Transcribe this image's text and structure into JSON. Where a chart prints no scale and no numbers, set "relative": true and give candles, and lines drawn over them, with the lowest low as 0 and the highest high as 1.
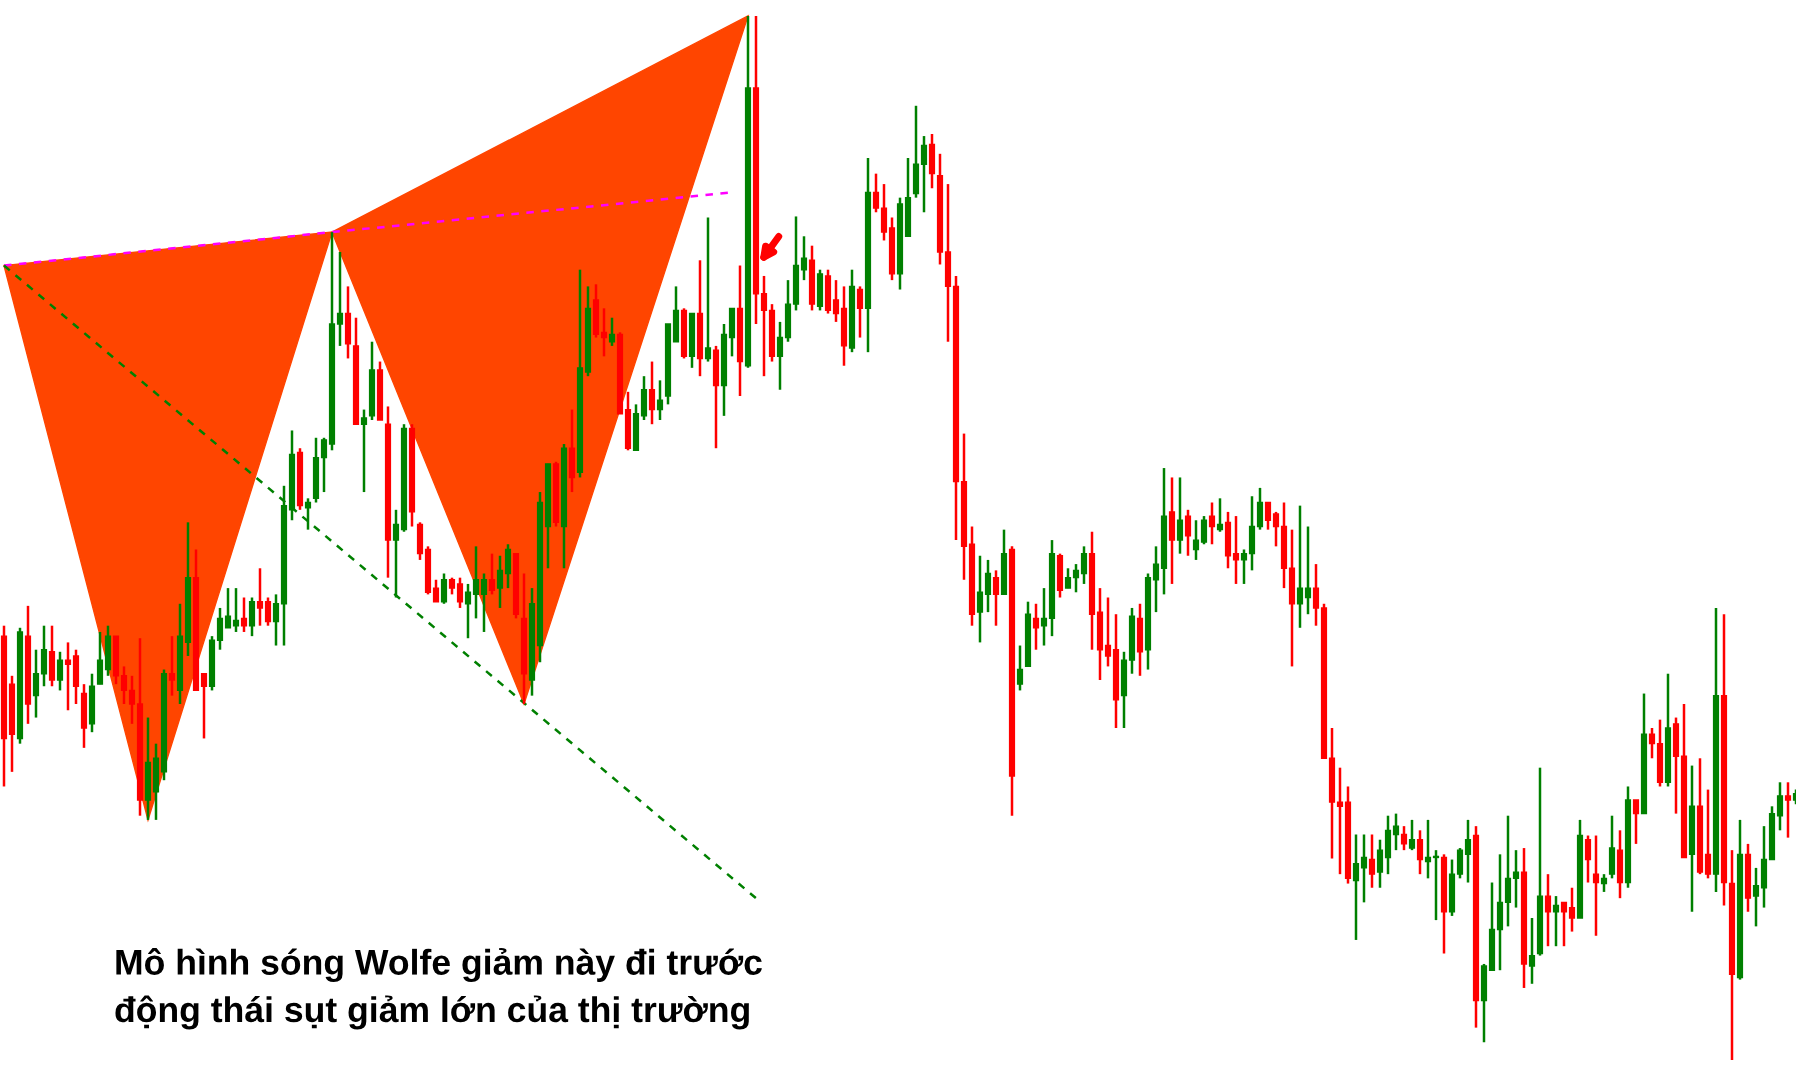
{
  "chart_data": {
    "type": "candlestick",
    "relative": true,
    "categories": [
      null,
      null,
      null,
      null,
      null,
      null,
      null,
      null,
      null,
      null,
      null,
      null,
      null,
      null,
      null,
      null,
      null,
      null,
      null,
      null,
      null,
      null,
      null,
      null,
      null,
      null,
      null,
      null,
      null,
      null,
      null,
      null,
      null,
      null,
      null,
      null,
      null,
      null,
      null,
      null,
      null,
      null,
      null,
      null,
      null,
      null,
      null,
      null,
      null,
      null,
      null,
      null,
      null,
      null,
      null,
      null,
      null,
      null,
      null,
      null,
      null,
      null,
      null,
      null,
      null,
      null,
      null,
      null,
      null,
      null,
      null,
      null,
      null,
      null,
      null,
      null,
      null,
      null,
      null,
      null,
      null,
      null,
      null,
      null,
      null,
      null,
      null,
      null,
      null,
      null,
      null,
      null,
      null,
      null,
      null,
      null,
      null,
      null,
      null,
      null,
      null,
      null,
      null,
      null,
      null,
      null,
      null,
      null,
      null,
      null,
      null,
      null,
      null,
      null,
      null,
      null,
      null,
      null,
      null,
      null,
      null,
      null,
      null,
      null,
      null,
      null,
      null,
      null,
      null,
      null,
      null,
      null,
      null,
      null,
      null,
      null,
      null,
      null,
      null,
      null,
      null,
      null,
      null,
      null,
      null,
      null,
      null,
      null,
      null,
      null,
      null,
      null,
      null,
      null,
      null,
      null,
      null,
      null,
      null,
      null,
      null,
      null,
      null,
      null,
      null,
      null,
      null,
      null,
      null,
      null,
      null,
      null,
      null,
      null,
      null,
      null,
      null,
      null,
      null,
      null,
      null,
      null,
      null,
      null,
      null,
      null,
      null,
      null,
      null,
      null,
      null,
      null,
      null,
      null,
      null,
      null,
      null,
      null,
      null,
      null,
      null,
      null,
      null,
      null,
      null,
      null,
      null,
      null,
      null,
      null,
      null,
      null,
      null,
      null,
      null,
      null,
      null,
      null,
      null,
      null,
      null,
      null,
      null,
      null,
      null
    ],
    "ohlc": [
      [
        0.406,
        0.416,
        0.262,
        0.308
      ],
      [
        0.36,
        0.368,
        0.276,
        0.312
      ],
      [
        0.308,
        0.414,
        0.303,
        0.41
      ],
      [
        0.406,
        0.435,
        0.322,
        0.341
      ],
      [
        0.349,
        0.393,
        0.328,
        0.37
      ],
      [
        0.37,
        0.416,
        0.358,
        0.393
      ],
      [
        0.391,
        0.416,
        0.358,
        0.364
      ],
      [
        0.364,
        0.391,
        0.354,
        0.383
      ],
      [
        0.383,
        0.4,
        0.335,
        0.379
      ],
      [
        0.387,
        0.393,
        0.341,
        0.358
      ],
      [
        0.351,
        0.36,
        0.299,
        0.318
      ],
      [
        0.322,
        0.37,
        0.314,
        0.358
      ],
      [
        0.36,
        0.41,
        0.36,
        0.383
      ],
      [
        0.374,
        0.416,
        0.368,
        0.406
      ],
      [
        0.406,
        0.406,
        0.36,
        0.368
      ],
      [
        0.368,
        0.377,
        0.341,
        0.354
      ],
      [
        0.354,
        0.368,
        0.322,
        0.341
      ],
      [
        0.341,
        0.404,
        0.234,
        0.249
      ],
      [
        0.249,
        0.328,
        0.23,
        0.285
      ],
      [
        0.257,
        0.303,
        0.23,
        0.289
      ],
      [
        0.276,
        0.374,
        0.268,
        0.37
      ],
      [
        0.37,
        0.406,
        0.349,
        0.364
      ],
      [
        0.354,
        0.437,
        0.341,
        0.406
      ],
      [
        0.4,
        0.515,
        0.387,
        0.462
      ],
      [
        0.462,
        0.489,
        0.354,
        0.354
      ],
      [
        0.37,
        0.37,
        0.308,
        0.358
      ],
      [
        0.358,
        0.406,
        0.354,
        0.402
      ],
      [
        0.402,
        0.433,
        0.393,
        0.423
      ],
      [
        0.414,
        0.452,
        0.414,
        0.425
      ],
      [
        0.416,
        0.452,
        0.41,
        0.421
      ],
      [
        0.423,
        0.443,
        0.41,
        0.416
      ],
      [
        0.416,
        0.443,
        0.406,
        0.439
      ],
      [
        0.439,
        0.471,
        0.416,
        0.433
      ],
      [
        0.439,
        0.443,
        0.416,
        0.42
      ],
      [
        0.42,
        0.446,
        0.397,
        0.437
      ],
      [
        0.437,
        0.55,
        0.397,
        0.531
      ],
      [
        0.527,
        0.603,
        0.517,
        0.58
      ],
      [
        0.582,
        0.586,
        0.527,
        0.531
      ],
      [
        0.529,
        0.538,
        0.508,
        0.534
      ],
      [
        0.538,
        0.596,
        0.534,
        0.577
      ],
      [
        0.577,
        0.596,
        0.544,
        0.594
      ],
      [
        0.59,
        0.793,
        0.584,
        0.705
      ],
      [
        0.705,
        0.774,
        0.684,
        0.715
      ],
      [
        0.715,
        0.741,
        0.672,
        0.686
      ],
      [
        0.684,
        0.711,
        0.609,
        0.609
      ],
      [
        0.609,
        0.623,
        0.544,
        0.615
      ],
      [
        0.617,
        0.688,
        0.613,
        0.661
      ],
      [
        0.661,
        0.669,
        0.613,
        0.613
      ],
      [
        0.609,
        0.626,
        0.462,
        0.498
      ],
      [
        0.498,
        0.527,
        0.443,
        0.513
      ],
      [
        0.508,
        0.609,
        0.506,
        0.605
      ],
      [
        0.605,
        0.609,
        0.511,
        0.525
      ],
      [
        0.513,
        0.515,
        0.479,
        0.485
      ],
      [
        0.489,
        0.492,
        0.446,
        0.448
      ],
      [
        0.452,
        0.46,
        0.439,
        0.439
      ],
      [
        0.439,
        0.466,
        0.437,
        0.46
      ],
      [
        0.46,
        0.462,
        0.446,
        0.452
      ],
      [
        0.456,
        0.462,
        0.433,
        0.439
      ],
      [
        0.437,
        0.456,
        0.404,
        0.448
      ],
      [
        0.446,
        0.492,
        0.423,
        0.46
      ],
      [
        0.446,
        0.466,
        0.41,
        0.46
      ],
      [
        0.46,
        0.485,
        0.446,
        0.45
      ],
      [
        0.452,
        0.483,
        0.433,
        0.469
      ],
      [
        0.466,
        0.494,
        0.452,
        0.489
      ],
      [
        0.485,
        0.485,
        0.423,
        0.427
      ],
      [
        0.423,
        0.466,
        0.341,
        0.37
      ],
      [
        0.364,
        0.452,
        0.349,
        0.437
      ],
      [
        0.397,
        0.544,
        0.381,
        0.534
      ],
      [
        0.511,
        0.571,
        0.471,
        0.571
      ],
      [
        0.571,
        0.573,
        0.511,
        0.515
      ],
      [
        0.511,
        0.59,
        0.471,
        0.586
      ],
      [
        0.586,
        0.623,
        0.544,
        0.558
      ],
      [
        0.563,
        0.757,
        0.558,
        0.663
      ],
      [
        0.659,
        0.741,
        0.655,
        0.72
      ],
      [
        0.728,
        0.743,
        0.692,
        0.695
      ],
      [
        0.697,
        0.72,
        0.674,
        0.692
      ],
      [
        0.688,
        0.711,
        0.684,
        0.695
      ],
      [
        0.695,
        0.697,
        0.619,
        0.619
      ],
      [
        0.623,
        0.64,
        0.584,
        0.586
      ],
      [
        0.584,
        0.628,
        0.584,
        0.619
      ],
      [
        0.617,
        0.655,
        0.613,
        0.642
      ],
      [
        0.642,
        0.669,
        0.609,
        0.623
      ],
      [
        0.623,
        0.651,
        0.613,
        0.632
      ],
      [
        0.636,
        0.705,
        0.628,
        0.705
      ],
      [
        0.688,
        0.741,
        0.688,
        0.718
      ],
      [
        0.718,
        0.72,
        0.672,
        0.674
      ],
      [
        0.674,
        0.715,
        0.663,
        0.715
      ],
      [
        0.715,
        0.766,
        0.655,
        0.672
      ],
      [
        0.672,
        0.807,
        0.669,
        0.682
      ],
      [
        0.68,
        0.684,
        0.586,
        0.646
      ],
      [
        0.646,
        0.705,
        0.617,
        0.695
      ],
      [
        0.692,
        0.72,
        0.674,
        0.72
      ],
      [
        0.72,
        0.761,
        0.636,
        0.669
      ],
      [
        0.665,
        1.0,
        0.663,
        0.931
      ],
      [
        0.931,
        1.0,
        0.705,
        0.734
      ],
      [
        0.734,
        0.751,
        0.655,
        0.718
      ],
      [
        0.718,
        0.724,
        0.669,
        0.674
      ],
      [
        0.674,
        0.707,
        0.642,
        0.692
      ],
      [
        0.692,
        0.747,
        0.688,
        0.724
      ],
      [
        0.724,
        0.808,
        0.718,
        0.761
      ],
      [
        0.757,
        0.789,
        0.747,
        0.768
      ],
      [
        0.766,
        0.78,
        0.718,
        0.724
      ],
      [
        0.722,
        0.757,
        0.718,
        0.753
      ],
      [
        0.751,
        0.757,
        0.715,
        0.718
      ],
      [
        0.728,
        0.747,
        0.707,
        0.715
      ],
      [
        0.72,
        0.741,
        0.665,
        0.684
      ],
      [
        0.682,
        0.757,
        0.678,
        0.741
      ],
      [
        0.738,
        0.741,
        0.692,
        0.72
      ],
      [
        0.72,
        0.864,
        0.678,
        0.831
      ],
      [
        0.831,
        0.849,
        0.812,
        0.816
      ],
      [
        0.816,
        0.839,
        0.785,
        0.793
      ],
      [
        0.797,
        0.807,
        0.747,
        0.753
      ],
      [
        0.753,
        0.826,
        0.738,
        0.82
      ],
      [
        0.789,
        0.864,
        0.789,
        0.826
      ],
      [
        0.83,
        0.914,
        0.826,
        0.858
      ],
      [
        0.858,
        0.885,
        0.812,
        0.876
      ],
      [
        0.877,
        0.887,
        0.835,
        0.849
      ],
      [
        0.847,
        0.868,
        0.762,
        0.774
      ],
      [
        0.774,
        0.839,
        0.688,
        0.741
      ],
      [
        0.741,
        0.751,
        0.498,
        0.554
      ],
      [
        0.554,
        0.6,
        0.46,
        0.492
      ],
      [
        0.494,
        0.511,
        0.416,
        0.427
      ],
      [
        0.429,
        0.483,
        0.4,
        0.448
      ],
      [
        0.446,
        0.479,
        0.429,
        0.466
      ],
      [
        0.462,
        0.469,
        0.416,
        0.446
      ],
      [
        0.446,
        0.508,
        0.446,
        0.485
      ],
      [
        0.489,
        0.492,
        0.234,
        0.272
      ],
      [
        0.36,
        0.397,
        0.354,
        0.374
      ],
      [
        0.377,
        0.439,
        0.377,
        0.427
      ],
      [
        0.423,
        0.437,
        0.393,
        0.414
      ],
      [
        0.416,
        0.452,
        0.397,
        0.423
      ],
      [
        0.423,
        0.498,
        0.406,
        0.485
      ],
      [
        0.483,
        0.485,
        0.443,
        0.45
      ],
      [
        0.452,
        0.471,
        0.452,
        0.462
      ],
      [
        0.462,
        0.475,
        0.448,
        0.469
      ],
      [
        0.466,
        0.492,
        0.456,
        0.485
      ],
      [
        0.485,
        0.506,
        0.393,
        0.427
      ],
      [
        0.429,
        0.452,
        0.364,
        0.393
      ],
      [
        0.397,
        0.443,
        0.377,
        0.387
      ],
      [
        0.393,
        0.427,
        0.318,
        0.345
      ],
      [
        0.349,
        0.391,
        0.318,
        0.383
      ],
      [
        0.383,
        0.433,
        0.37,
        0.425
      ],
      [
        0.423,
        0.437,
        0.368,
        0.391
      ],
      [
        0.393,
        0.466,
        0.374,
        0.462
      ],
      [
        0.46,
        0.492,
        0.429,
        0.475
      ],
      [
        0.471,
        0.567,
        0.446,
        0.521
      ],
      [
        0.525,
        0.558,
        0.456,
        0.498
      ],
      [
        0.498,
        0.558,
        0.485,
        0.517
      ],
      [
        0.521,
        0.527,
        0.483,
        0.502
      ],
      [
        0.489,
        0.517,
        0.479,
        0.498
      ],
      [
        0.496,
        0.521,
        0.494,
        0.517
      ],
      [
        0.521,
        0.534,
        0.494,
        0.511
      ],
      [
        0.508,
        0.538,
        0.506,
        0.513
      ],
      [
        0.515,
        0.525,
        0.471,
        0.483
      ],
      [
        0.485,
        0.521,
        0.456,
        0.479
      ],
      [
        0.479,
        0.489,
        0.456,
        0.485
      ],
      [
        0.485,
        0.54,
        0.469,
        0.511
      ],
      [
        0.511,
        0.548,
        0.508,
        0.534
      ],
      [
        0.534,
        0.534,
        0.508,
        0.517
      ],
      [
        0.523,
        0.525,
        0.492,
        0.511
      ],
      [
        0.511,
        0.534,
        0.452,
        0.471
      ],
      [
        0.471,
        0.508,
        0.377,
        0.437
      ],
      [
        0.437,
        0.531,
        0.414,
        0.452
      ],
      [
        0.443,
        0.511,
        0.427,
        0.452
      ],
      [
        0.452,
        0.475,
        0.416,
        0.433
      ],
      [
        0.433,
        0.437,
        0.289,
        0.289
      ],
      [
        0.289,
        0.318,
        0.193,
        0.247
      ],
      [
        0.247,
        0.28,
        0.178,
        0.243
      ],
      [
        0.247,
        0.262,
        0.169,
        0.174
      ],
      [
        0.172,
        0.216,
        0.115,
        0.188
      ],
      [
        0.184,
        0.216,
        0.151,
        0.194
      ],
      [
        0.192,
        0.216,
        0.165,
        0.178
      ],
      [
        0.18,
        0.211,
        0.165,
        0.201
      ],
      [
        0.194,
        0.234,
        0.178,
        0.22
      ],
      [
        0.216,
        0.236,
        0.201,
        0.224
      ],
      [
        0.216,
        0.224,
        0.201,
        0.207
      ],
      [
        0.203,
        0.23,
        0.201,
        0.211
      ],
      [
        0.211,
        0.22,
        0.178,
        0.192
      ],
      [
        0.19,
        0.23,
        0.174,
        0.194
      ],
      [
        0.194,
        0.201,
        0.134,
        0.195
      ],
      [
        0.194,
        0.197,
        0.102,
        0.142
      ],
      [
        0.142,
        0.192,
        0.138,
        0.178
      ],
      [
        0.178,
        0.203,
        0.174,
        0.201
      ],
      [
        0.197,
        0.23,
        0.17,
        0.211
      ],
      [
        0.215,
        0.224,
        0.031,
        0.057
      ],
      [
        0.057,
        0.092,
        0.017,
        0.09
      ],
      [
        0.086,
        0.17,
        0.086,
        0.125
      ],
      [
        0.125,
        0.197,
        0.086,
        0.151
      ],
      [
        0.151,
        0.234,
        0.128,
        0.174
      ],
      [
        0.174,
        0.201,
        0.146,
        0.18
      ],
      [
        0.18,
        0.203,
        0.069,
        0.092
      ],
      [
        0.09,
        0.136,
        0.073,
        0.1
      ],
      [
        0.102,
        0.28,
        0.1,
        0.157
      ],
      [
        0.157,
        0.178,
        0.109,
        0.142
      ],
      [
        0.142,
        0.157,
        0.109,
        0.148
      ],
      [
        0.151,
        0.151,
        0.109,
        0.142
      ],
      [
        0.146,
        0.165,
        0.123,
        0.136
      ],
      [
        0.136,
        0.23,
        0.136,
        0.215
      ],
      [
        0.211,
        0.215,
        0.17,
        0.192
      ],
      [
        0.178,
        0.215,
        0.119,
        0.17
      ],
      [
        0.169,
        0.178,
        0.161,
        0.174
      ],
      [
        0.178,
        0.234,
        0.174,
        0.203
      ],
      [
        0.201,
        0.22,
        0.155,
        0.17
      ],
      [
        0.17,
        0.262,
        0.165,
        0.249
      ],
      [
        0.249,
        0.249,
        0.207,
        0.236
      ],
      [
        0.236,
        0.351,
        0.236,
        0.312
      ],
      [
        0.312,
        0.318,
        0.289,
        0.303
      ],
      [
        0.303,
        0.326,
        0.262,
        0.266
      ],
      [
        0.266,
        0.37,
        0.262,
        0.318
      ],
      [
        0.322,
        0.328,
        0.236,
        0.291
      ],
      [
        0.291,
        0.341,
        0.194,
        0.194
      ],
      [
        0.197,
        0.282,
        0.142,
        0.243
      ],
      [
        0.243,
        0.289,
        0.178,
        0.18
      ],
      [
        0.197,
        0.259,
        0.174,
        0.178
      ],
      [
        0.178,
        0.433,
        0.161,
        0.349
      ],
      [
        0.349,
        0.427,
        0.148,
        0.17
      ],
      [
        0.169,
        0.201,
        0.0,
        0.082
      ],
      [
        0.079,
        0.23,
        0.077,
        0.197
      ],
      [
        0.197,
        0.207,
        0.142,
        0.155
      ],
      [
        0.157,
        0.184,
        0.128,
        0.167
      ],
      [
        0.165,
        0.224,
        0.146,
        0.192
      ],
      [
        0.192,
        0.243,
        0.192,
        0.236
      ],
      [
        0.234,
        0.266,
        0.22,
        0.253
      ],
      [
        0.253,
        0.266,
        0.213,
        0.249
      ],
      [
        0.249,
        0.259,
        0.245,
        0.255
      ]
    ],
    "colors": [
      "#ff0000",
      "#ff0000",
      "#008000",
      "#ff0000",
      "#008000",
      "#008000",
      "#ff0000",
      "#008000",
      "#ff0000",
      "#ff0000",
      "#ff0000",
      "#008000",
      "#008000",
      "#008000",
      "#ff0000",
      "#ff0000",
      "#ff0000",
      "#ff0000",
      "#008000",
      "#008000",
      "#008000",
      "#ff0000",
      "#008000",
      "#008000",
      "#ff0000",
      "#ff0000",
      "#008000",
      "#008000",
      "#008000",
      "#008000",
      "#ff0000",
      "#008000",
      "#ff0000",
      "#ff0000",
      "#008000",
      "#008000",
      "#008000",
      "#ff0000",
      "#008000",
      "#008000",
      "#008000",
      "#008000",
      "#008000",
      "#ff0000",
      "#ff0000",
      "#008000",
      "#008000",
      "#ff0000",
      "#ff0000",
      "#008000",
      "#008000",
      "#ff0000",
      "#ff0000",
      "#ff0000",
      "#ff0000",
      "#008000",
      "#ff0000",
      "#ff0000",
      "#008000",
      "#008000",
      "#008000",
      "#ff0000",
      "#008000",
      "#008000",
      "#ff0000",
      "#ff0000",
      "#008000",
      "#008000",
      "#008000",
      "#ff0000",
      "#008000",
      "#ff0000",
      "#008000",
      "#008000",
      "#ff0000",
      "#ff0000",
      "#008000",
      "#ff0000",
      "#ff0000",
      "#008000",
      "#008000",
      "#ff0000",
      "#008000",
      "#008000",
      "#008000",
      "#ff0000",
      "#008000",
      "#ff0000",
      "#008000",
      "#ff0000",
      "#008000",
      "#008000",
      "#ff0000",
      "#008000",
      "#ff0000",
      "#ff0000",
      "#ff0000",
      "#008000",
      "#008000",
      "#008000",
      "#008000",
      "#ff0000",
      "#008000",
      "#ff0000",
      "#ff0000",
      "#ff0000",
      "#008000",
      "#ff0000",
      "#008000",
      "#ff0000",
      "#ff0000",
      "#ff0000",
      "#008000",
      "#008000",
      "#008000",
      "#008000",
      "#ff0000",
      "#ff0000",
      "#ff0000",
      "#ff0000",
      "#ff0000",
      "#ff0000",
      "#008000",
      "#008000",
      "#ff0000",
      "#008000",
      "#ff0000",
      "#008000",
      "#008000",
      "#ff0000",
      "#008000",
      "#008000",
      "#ff0000",
      "#008000",
      "#008000",
      "#008000",
      "#ff0000",
      "#ff0000",
      "#ff0000",
      "#ff0000",
      "#008000",
      "#008000",
      "#ff0000",
      "#008000",
      "#008000",
      "#008000",
      "#ff0000",
      "#008000",
      "#ff0000",
      "#008000",
      "#008000",
      "#ff0000",
      "#008000",
      "#ff0000",
      "#ff0000",
      "#008000",
      "#008000",
      "#008000",
      "#ff0000",
      "#ff0000",
      "#ff0000",
      "#ff0000",
      "#008000",
      "#008000",
      "#ff0000",
      "#ff0000",
      "#ff0000",
      "#ff0000",
      "#ff0000",
      "#008000",
      "#008000",
      "#ff0000",
      "#008000",
      "#008000",
      "#008000",
      "#ff0000",
      "#008000",
      "#ff0000",
      "#008000",
      "#008000",
      "#ff0000",
      "#008000",
      "#008000",
      "#008000",
      "#ff0000",
      "#008000",
      "#008000",
      "#008000",
      "#008000",
      "#008000",
      "#ff0000",
      "#008000",
      "#008000",
      "#ff0000",
      "#008000",
      "#ff0000",
      "#ff0000",
      "#008000",
      "#ff0000",
      "#ff0000",
      "#008000",
      "#008000",
      "#ff0000",
      "#008000",
      "#ff0000",
      "#008000",
      "#ff0000",
      "#ff0000",
      "#008000",
      "#ff0000",
      "#ff0000",
      "#008000",
      "#ff0000",
      "#ff0000",
      "#008000",
      "#ff0000",
      "#ff0000",
      "#008000",
      "#ff0000",
      "#008000",
      "#008000",
      "#008000",
      "#008000",
      "#ff0000",
      "#008000"
    ],
    "series": [
      {
        "type": "line",
        "color": "#ff00ff",
        "line_style": "dashed",
        "values": [
          0.761,
          null,
          null,
          null,
          null,
          null,
          null,
          null,
          null,
          null,
          null,
          null,
          null,
          null,
          null,
          null,
          null,
          null,
          null,
          null,
          null,
          null,
          null,
          null,
          null,
          null,
          null,
          null,
          null,
          null,
          null,
          null,
          null,
          null,
          null,
          null,
          null,
          null,
          null,
          null,
          null,
          0.793,
          null,
          null,
          null,
          null,
          null,
          null,
          null,
          null,
          null,
          null,
          null,
          null,
          null,
          null,
          null,
          null,
          null,
          null,
          null,
          null,
          null,
          null,
          null,
          null,
          null,
          null,
          null,
          null,
          null,
          null,
          null,
          null,
          null,
          null,
          null,
          null,
          null,
          null,
          null,
          null,
          null,
          null,
          null,
          null,
          null,
          null,
          null,
          null,
          null,
          0.831,
          null,
          null,
          null,
          null,
          null,
          null,
          null,
          null,
          null,
          null,
          null,
          null,
          null,
          null,
          null,
          null,
          null,
          null,
          null,
          null,
          null,
          null,
          null,
          null,
          null,
          null,
          null,
          null,
          null,
          null,
          null,
          null,
          null,
          null,
          null,
          null,
          null,
          null,
          null,
          null,
          null,
          null,
          null,
          null,
          null,
          null,
          null,
          null,
          null,
          null,
          null,
          null,
          null,
          null,
          null,
          null,
          null,
          null,
          null,
          null,
          null,
          null,
          null,
          null,
          null,
          null,
          null,
          null,
          null,
          null,
          null,
          null,
          null,
          null,
          null,
          null,
          null,
          null,
          null,
          null,
          null,
          null,
          null,
          null,
          null,
          null,
          null,
          null,
          null,
          null,
          null,
          null,
          null,
          null,
          null,
          null,
          null,
          null,
          null,
          null,
          null,
          null,
          null,
          null,
          null,
          null,
          null,
          null,
          null,
          null,
          null,
          null,
          null,
          null,
          null,
          null,
          null,
          null,
          null,
          null,
          null,
          null,
          null,
          null,
          null,
          null,
          null,
          null,
          null,
          null,
          null,
          null,
          null
        ]
      },
      {
        "type": "line",
        "color": "#008000",
        "line_style": "dashed",
        "values": [
          0.761,
          null,
          null,
          null,
          null,
          null,
          null,
          null,
          null,
          null,
          null,
          null,
          null,
          null,
          null,
          null,
          null,
          null,
          null,
          null,
          null,
          null,
          null,
          null,
          null,
          null,
          null,
          null,
          null,
          null,
          null,
          null,
          null,
          null,
          null,
          null,
          null,
          null,
          null,
          null,
          null,
          null,
          null,
          null,
          null,
          null,
          null,
          null,
          null,
          null,
          null,
          null,
          null,
          null,
          null,
          null,
          null,
          null,
          null,
          null,
          null,
          null,
          null,
          null,
          null,
          null,
          null,
          null,
          null,
          null,
          null,
          null,
          null,
          null,
          null,
          null,
          null,
          null,
          null,
          null,
          null,
          null,
          null,
          null,
          null,
          null,
          null,
          null,
          null,
          null,
          null,
          null,
          null,
          null,
          0.155,
          null,
          null,
          null,
          null,
          null,
          null,
          null,
          null,
          null,
          null,
          null,
          null,
          null,
          null,
          null,
          null,
          null,
          null,
          null,
          null,
          null,
          null,
          null,
          null,
          null,
          null,
          null,
          null,
          null,
          null,
          null,
          null,
          null,
          null,
          null,
          null,
          null,
          null,
          null,
          null,
          null,
          null,
          null,
          null,
          null,
          null,
          null,
          null,
          null,
          null,
          null,
          null,
          null,
          null,
          null,
          null,
          null,
          null,
          null,
          null,
          null,
          null,
          null,
          null,
          null,
          null,
          null,
          null,
          null,
          null,
          null,
          null,
          null,
          null,
          null,
          null,
          null,
          null,
          null,
          null,
          null,
          null,
          null,
          null,
          null,
          null,
          null,
          null,
          null,
          null,
          null,
          null,
          null,
          null,
          null,
          null,
          null,
          null,
          null,
          null,
          null,
          null,
          null,
          null,
          null,
          null,
          null,
          null,
          null,
          null,
          null,
          null,
          null,
          null,
          null,
          null,
          null,
          null,
          null,
          null,
          null,
          null,
          null,
          null,
          null,
          null,
          null,
          null,
          null,
          null
        ]
      }
    ],
    "annotations": [
      "Mô hình sóng Wolfe giảm này đi trước\nđộng thái sụt giảm lớn của thị trường"
    ]
  }
}
